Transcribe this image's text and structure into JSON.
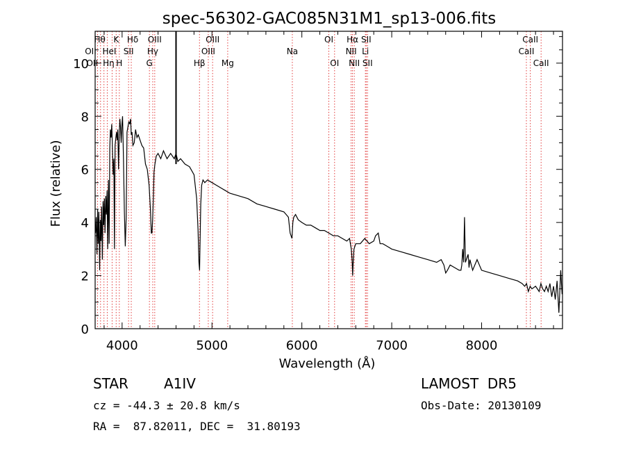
{
  "chart_data": {
    "type": "line",
    "title": "spec-56302-GAC085N31M1_sp13-006.fits",
    "xlabel": "Wavelength (Å)",
    "ylabel": "Flux (relative)",
    "xlim": [
      3700,
      8900
    ],
    "ylim": [
      0,
      11.2
    ],
    "x_ticks": [
      4000,
      5000,
      6000,
      7000,
      8000
    ],
    "y_ticks": [
      0,
      2,
      4,
      6,
      8,
      10
    ],
    "grid": false,
    "series": [
      {
        "x": [
          3705,
          3712,
          3720,
          3728,
          3735,
          3742,
          3750,
          3758,
          3765,
          3772,
          3780,
          3788,
          3795,
          3803,
          3810,
          3818,
          3825,
          3833,
          3840,
          3848,
          3856,
          3863,
          3870,
          3878,
          3885,
          3892,
          3900,
          3908,
          3915,
          3922,
          3930,
          3938,
          3945,
          3952,
          3960,
          3968,
          3975,
          3982,
          3990,
          3998,
          4005,
          4015,
          4025,
          4035,
          4045,
          4055,
          4065,
          4075,
          4085,
          4095,
          4102,
          4110,
          4120,
          4135,
          4150,
          4165,
          4180,
          4200,
          4220,
          4240,
          4260,
          4280,
          4300,
          4315,
          4325,
          4332,
          4340,
          4348,
          4355,
          4365,
          4380,
          4400,
          4430,
          4460,
          4500,
          4540,
          4580,
          4600,
          4620,
          4650,
          4700,
          4750,
          4800,
          4830,
          4845,
          4855,
          4862,
          4868,
          4875,
          4885,
          4900,
          4920,
          4950,
          5000,
          5050,
          5100,
          5150,
          5200,
          5300,
          5400,
          5500,
          5600,
          5700,
          5800,
          5850,
          5870,
          5890,
          5900,
          5910,
          5930,
          5960,
          6000,
          6050,
          6100,
          6150,
          6200,
          6250,
          6300,
          6350,
          6400,
          6450,
          6500,
          6530,
          6550,
          6560,
          6565,
          6570,
          6580,
          6600,
          6650,
          6700,
          6750,
          6800,
          6820,
          6850,
          6870,
          6900,
          6950,
          7000,
          7100,
          7200,
          7300,
          7400,
          7500,
          7550,
          7580,
          7600,
          7620,
          7650,
          7700,
          7750,
          7770,
          7780,
          7790,
          7800,
          7810,
          7820,
          7850,
          7860,
          7870,
          7900,
          7950,
          8000,
          8100,
          8200,
          8300,
          8400,
          8450,
          8480,
          8500,
          8520,
          8540,
          8560,
          8600,
          8640,
          8660,
          8680,
          8700,
          8720,
          8740,
          8760,
          8780,
          8800,
          8820,
          8840,
          8860,
          8880,
          8895
        ],
        "y": [
          3.6,
          4.2,
          2.8,
          4.5,
          3.2,
          4.4,
          2.2,
          4.1,
          3.3,
          4.6,
          2.6,
          4.8,
          3.9,
          4.9,
          3.6,
          5.0,
          4.3,
          5.2,
          3.0,
          5.6,
          3.2,
          6.8,
          7.5,
          7.2,
          7.7,
          6.9,
          5.8,
          6.4,
          3.0,
          6.9,
          7.2,
          7.4,
          7.1,
          7.5,
          6.0,
          7.3,
          7.9,
          7.6,
          7.0,
          7.7,
          8.0,
          6.4,
          4.4,
          3.1,
          4.2,
          7.4,
          7.6,
          7.8,
          7.7,
          7.9,
          7.3,
          7.4,
          6.9,
          7.0,
          7.5,
          7.2,
          7.3,
          7.1,
          6.9,
          6.8,
          6.2,
          6.0,
          5.4,
          4.5,
          3.6,
          3.6,
          4.1,
          5.0,
          5.9,
          6.2,
          6.5,
          6.6,
          6.4,
          6.7,
          6.4,
          6.6,
          6.4,
          6.6,
          6.3,
          6.4,
          6.2,
          6.1,
          5.8,
          4.9,
          3.7,
          2.5,
          2.2,
          3.4,
          4.7,
          5.4,
          5.6,
          5.5,
          5.6,
          5.5,
          5.4,
          5.3,
          5.2,
          5.1,
          5.0,
          4.9,
          4.7,
          4.6,
          4.5,
          4.4,
          4.2,
          3.6,
          3.4,
          4.0,
          4.2,
          4.3,
          4.1,
          4.0,
          3.9,
          3.9,
          3.8,
          3.7,
          3.7,
          3.6,
          3.5,
          3.5,
          3.4,
          3.3,
          3.4,
          3.0,
          2.5,
          2.0,
          2.4,
          3.0,
          3.2,
          3.2,
          3.4,
          3.2,
          3.3,
          3.5,
          3.6,
          3.2,
          3.2,
          3.1,
          3.0,
          2.9,
          2.8,
          2.7,
          2.6,
          2.5,
          2.6,
          2.4,
          2.1,
          2.2,
          2.4,
          2.3,
          2.2,
          2.2,
          2.4,
          3.0,
          2.5,
          4.2,
          2.5,
          2.8,
          2.3,
          2.6,
          2.2,
          2.6,
          2.2,
          2.1,
          2.0,
          1.9,
          1.8,
          1.7,
          1.6,
          1.7,
          1.4,
          1.6,
          1.5,
          1.6,
          1.4,
          1.7,
          1.5,
          1.4,
          1.6,
          1.4,
          1.7,
          1.2,
          1.6,
          1.1,
          1.8,
          0.6,
          2.2,
          1.3
        ]
      }
    ],
    "lines": [
      {
        "wl": 3727,
        "label": "OII",
        "row": 1,
        "dx": -10
      },
      {
        "wl": 3760,
        "label": "OII",
        "row": 2,
        "dx": -12
      },
      {
        "wl": 3798,
        "label": "Hθ",
        "row": 0,
        "dx": -6
      },
      {
        "wl": 3835,
        "label": "Hη",
        "row": 2,
        "dx": 2
      },
      {
        "wl": 3889,
        "label": "HeI",
        "row": 1,
        "dx": -4
      },
      {
        "wl": 3934,
        "label": "K",
        "row": 0,
        "dx": 0
      },
      {
        "wl": 3969,
        "label": "H",
        "row": 2,
        "dx": 0
      },
      {
        "wl": 4072,
        "label": "SII",
        "row": 1,
        "dx": 0
      },
      {
        "wl": 4102,
        "label": "Hδ",
        "row": 0,
        "dx": 2
      },
      {
        "wl": 4304,
        "label": "G",
        "row": 2,
        "dx": 0
      },
      {
        "wl": 4341,
        "label": "Hγ",
        "row": 1,
        "dx": 0
      },
      {
        "wl": 4363,
        "label": "OIII",
        "row": 0,
        "dx": 0
      },
      {
        "wl": 4861,
        "label": "Hβ",
        "row": 2,
        "dx": 0
      },
      {
        "wl": 4959,
        "label": "OIII",
        "row": 1,
        "dx": 0
      },
      {
        "wl": 5007,
        "label": "OIII",
        "row": 0,
        "dx": 0
      },
      {
        "wl": 5175,
        "label": "Mg",
        "row": 2,
        "dx": 0
      },
      {
        "wl": 5894,
        "label": "Na",
        "row": 1,
        "dx": 0
      },
      {
        "wl": 6300,
        "label": "OI",
        "row": 0,
        "dx": 0
      },
      {
        "wl": 6364,
        "label": "OI",
        "row": 2,
        "dx": 0
      },
      {
        "wl": 6548,
        "label": "NII",
        "row": 1,
        "dx": 0
      },
      {
        "wl": 6563,
        "label": "Hα",
        "row": 0,
        "dx": 0
      },
      {
        "wl": 6583,
        "label": "NII",
        "row": 2,
        "dx": 0
      },
      {
        "wl": 6707,
        "label": "Li",
        "row": 1,
        "dx": 0
      },
      {
        "wl": 6716,
        "label": "SII",
        "row": 0,
        "dx": 0
      },
      {
        "wl": 6731,
        "label": "SII",
        "row": 2,
        "dx": 0
      },
      {
        "wl": 8498,
        "label": "CaII",
        "row": 1,
        "dx": 0
      },
      {
        "wl": 8542,
        "label": "CaII",
        "row": 0,
        "dx": 0
      },
      {
        "wl": 8662,
        "label": "CaII",
        "row": 2,
        "dx": 0
      }
    ],
    "black_marker_wl": 4600
  },
  "info": {
    "object_class": "STAR",
    "subclass": "A1IV",
    "survey": "LAMOST  DR5",
    "redshift": "cz = -44.3 ± 20.8 km/s",
    "obs_date": "Obs-Date: 20130109",
    "coords": "RA =  87.82011, DEC =  31.80193"
  },
  "colors": {
    "line_marker": "#e23a3a",
    "spectrum": "#000000"
  }
}
